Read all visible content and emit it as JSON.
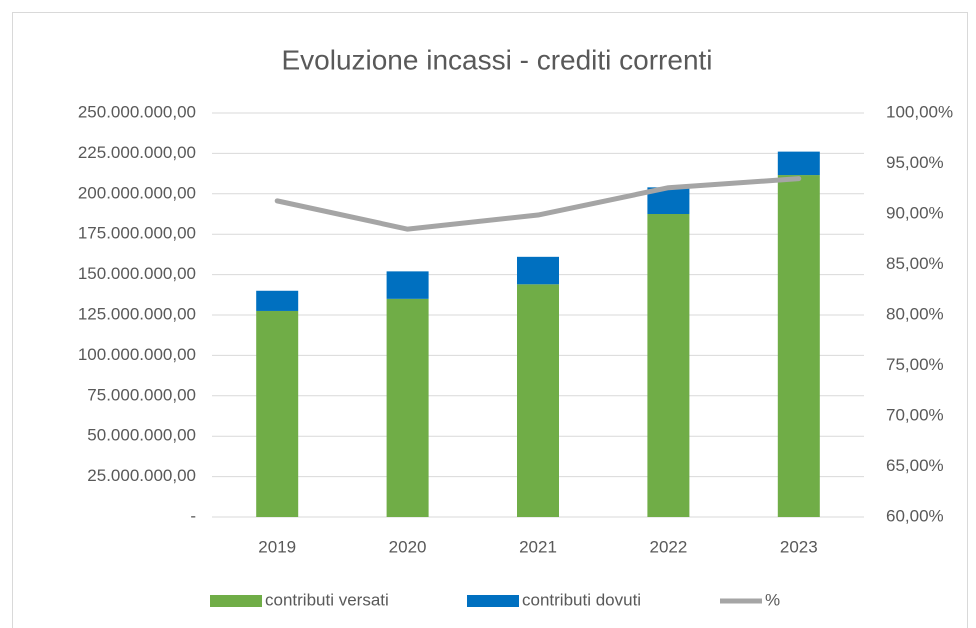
{
  "chart_data": {
    "type": "bar",
    "stacked": true,
    "title": "Evoluzione incassi - crediti correnti",
    "categories": [
      "2019",
      "2020",
      "2021",
      "2022",
      "2023"
    ],
    "series": [
      {
        "name": "contributi versati",
        "color": "#70ad47",
        "values": [
          127500000,
          135000000,
          144000000,
          187500000,
          211600000
        ]
      },
      {
        "name": "contributi dovuti",
        "color": "#0070c0",
        "values": [
          12500000,
          17000000,
          17000000,
          16500000,
          14500000
        ]
      },
      {
        "name": "%",
        "type": "line",
        "axis": "y2",
        "color": "#a5a5a5",
        "values": [
          91.3,
          88.5,
          89.9,
          92.6,
          93.5
        ]
      }
    ],
    "ylim": [
      0,
      250000000
    ],
    "yticks": [
      {
        "value": 0,
        "label": "-"
      },
      {
        "value": 25000000,
        "label": "25.000.000,00"
      },
      {
        "value": 50000000,
        "label": "50.000.000,00"
      },
      {
        "value": 75000000,
        "label": "75.000.000,00"
      },
      {
        "value": 100000000,
        "label": "100.000.000,00"
      },
      {
        "value": 125000000,
        "label": "125.000.000,00"
      },
      {
        "value": 150000000,
        "label": "150.000.000,00"
      },
      {
        "value": 175000000,
        "label": "175.000.000,00"
      },
      {
        "value": 200000000,
        "label": "200.000.000,00"
      },
      {
        "value": 225000000,
        "label": "225.000.000,00"
      },
      {
        "value": 250000000,
        "label": "250.000.000,00"
      }
    ],
    "y2lim": [
      60,
      100
    ],
    "y2ticks": [
      {
        "value": 60,
        "label": "60,00%"
      },
      {
        "value": 65,
        "label": "65,00%"
      },
      {
        "value": 70,
        "label": "70,00%"
      },
      {
        "value": 75,
        "label": "75,00%"
      },
      {
        "value": 80,
        "label": "80,00%"
      },
      {
        "value": 85,
        "label": "85,00%"
      },
      {
        "value": 90,
        "label": "90,00%"
      },
      {
        "value": 95,
        "label": "95,00%"
      },
      {
        "value": 100,
        "label": "100,00%"
      }
    ],
    "grid": true,
    "legend": "bottom"
  }
}
